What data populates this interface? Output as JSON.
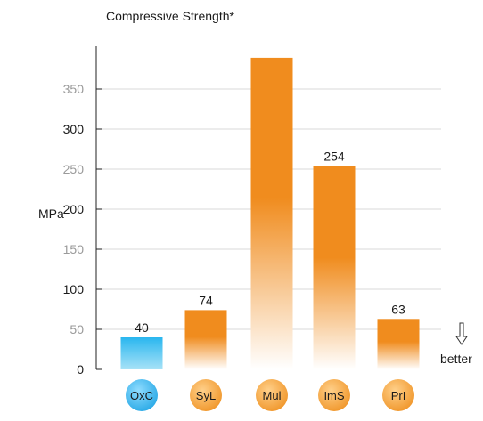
{
  "chart_data": {
    "type": "bar",
    "title": "Compressive Strength*",
    "ylabel": "MPa",
    "xlabel": "",
    "categories": [
      "OxC",
      "SyL",
      "Mul",
      "ImS",
      "PrI"
    ],
    "values": [
      40,
      74,
      389,
      254,
      63
    ],
    "data_labels": [
      "40",
      "74",
      "",
      "254",
      "63"
    ],
    "ylim": [
      0,
      390
    ],
    "yticks": [
      0,
      50,
      100,
      150,
      200,
      250,
      300,
      350
    ],
    "grid": true,
    "annotation": "better",
    "annotation_icon": "down-arrow-icon",
    "colors": {
      "highlight_top": "#29b6ef",
      "highlight_bottom": "#a8e2f7",
      "bar_top": "#f08c1e",
      "bar_bottom": "#ffffff",
      "gridline": "#d9d9d9",
      "badge_highlight": "#29a9e6",
      "badge": "#f0962a"
    },
    "highlight_index": 0
  }
}
